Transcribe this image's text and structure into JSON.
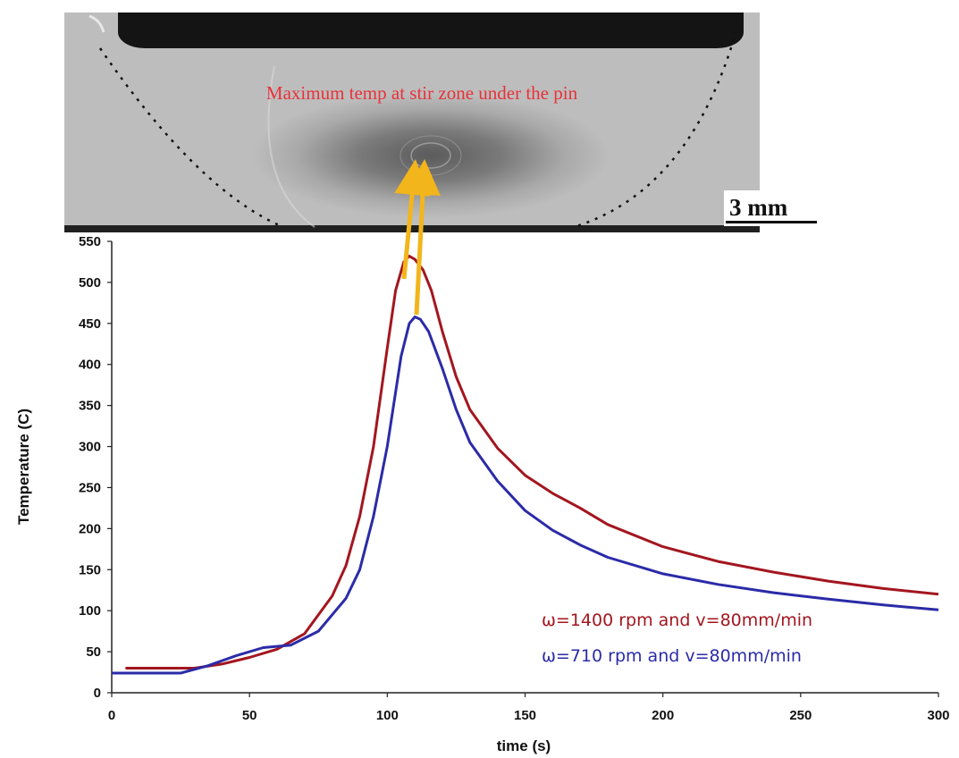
{
  "micrograph": {
    "caption": "Maximum temp at stir zone under the pin",
    "scale_bar": "3 mm"
  },
  "chart_data": {
    "type": "line",
    "xlabel": "time (s)",
    "ylabel": "Temperature (C)",
    "xlim": [
      0,
      300
    ],
    "ylim": [
      0,
      550
    ],
    "xticks": [
      0,
      50,
      100,
      150,
      200,
      250,
      300
    ],
    "yticks": [
      0,
      50,
      100,
      150,
      200,
      250,
      300,
      350,
      400,
      450,
      500,
      550
    ],
    "grid": false,
    "legend_position": "bottom-right",
    "series": [
      {
        "name": "ω=1400 rpm and v=80mm/min",
        "color": "#a3161f",
        "x": [
          5,
          20,
          30,
          40,
          50,
          60,
          70,
          80,
          85,
          90,
          95,
          100,
          103,
          106,
          108,
          110,
          113,
          116,
          120,
          125,
          130,
          140,
          150,
          160,
          170,
          180,
          200,
          220,
          240,
          260,
          280,
          300
        ],
        "y": [
          30,
          30,
          30,
          35,
          43,
          53,
          72,
          118,
          155,
          215,
          300,
          420,
          490,
          525,
          532,
          528,
          515,
          490,
          440,
          385,
          345,
          298,
          265,
          243,
          225,
          205,
          178,
          160,
          147,
          136,
          127,
          120
        ]
      },
      {
        "name": "ω=710 rpm and v=80mm/min",
        "color": "#2b2ba8",
        "x": [
          0,
          25,
          35,
          45,
          55,
          65,
          75,
          85,
          90,
          95,
          100,
          105,
          108,
          110,
          112,
          115,
          120,
          125,
          130,
          140,
          150,
          160,
          170,
          180,
          200,
          220,
          240,
          260,
          280,
          300
        ],
        "y": [
          24,
          24,
          33,
          45,
          55,
          58,
          75,
          115,
          150,
          215,
          300,
          410,
          450,
          458,
          455,
          440,
          395,
          345,
          305,
          258,
          222,
          198,
          180,
          165,
          145,
          132,
          122,
          114,
          107,
          101
        ]
      }
    ],
    "annotation": {
      "target": "peak",
      "color": "#f2b51b"
    }
  }
}
